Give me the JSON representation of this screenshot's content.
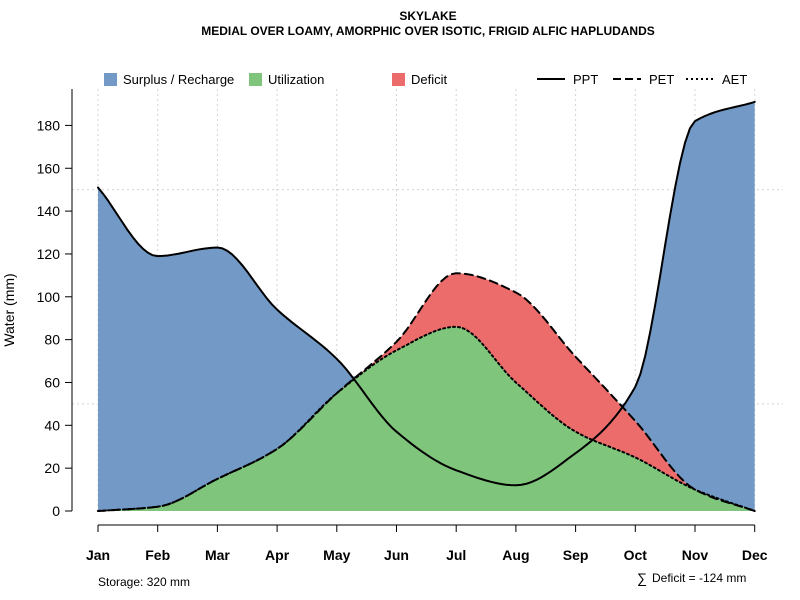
{
  "chart_data": {
    "type": "area",
    "title": "SKYLAKE",
    "subtitle": "MEDIAL OVER LOAMY, AMORPHIC OVER ISOTIC, FRIGID ALFIC HAPLUDANDS",
    "xlabel": "",
    "ylabel": "Water (mm)",
    "ylim": [
      0,
      197
    ],
    "yticks": [
      0,
      20,
      40,
      60,
      80,
      100,
      120,
      140,
      160,
      180
    ],
    "categories": [
      "Jan",
      "Feb",
      "Mar",
      "Apr",
      "May",
      "Jun",
      "Jul",
      "Aug",
      "Sep",
      "Oct",
      "Nov",
      "Dec"
    ],
    "grid": true,
    "legend_position": "top",
    "series": [
      {
        "name": "PPT",
        "style": "solid",
        "values": [
          151,
          119,
          123,
          94,
          71,
          37,
          19,
          12,
          27,
          58,
          182,
          191
        ]
      },
      {
        "name": "PET",
        "style": "dashed",
        "values": [
          0,
          2,
          15,
          29,
          55,
          79,
          111,
          102,
          72,
          42,
          10,
          0
        ]
      },
      {
        "name": "AET",
        "style": "dotted",
        "values": [
          0,
          2,
          15,
          29,
          55,
          75,
          86,
          60,
          37,
          25,
          10,
          0
        ]
      }
    ],
    "area_legend": [
      {
        "name": "Surplus / Recharge",
        "color": "#7399c6"
      },
      {
        "name": "Utilization",
        "color": "#7fc57c"
      },
      {
        "name": "Deficit",
        "color": "#ec6c6c"
      }
    ],
    "line_legend": [
      {
        "name": "PPT",
        "style": "solid"
      },
      {
        "name": "PET",
        "style": "dashed"
      },
      {
        "name": "AET",
        "style": "dotted"
      }
    ],
    "annotations": {
      "storage": "Storage: 320 mm",
      "deficit_symbol": "∑",
      "deficit": "Deficit = -124 mm"
    },
    "colors": {
      "surplus": "#7399c6",
      "utilization": "#7fc57c",
      "deficit": "#ec6c6c",
      "line": "#000000",
      "grid": "#d3d3d3"
    }
  }
}
